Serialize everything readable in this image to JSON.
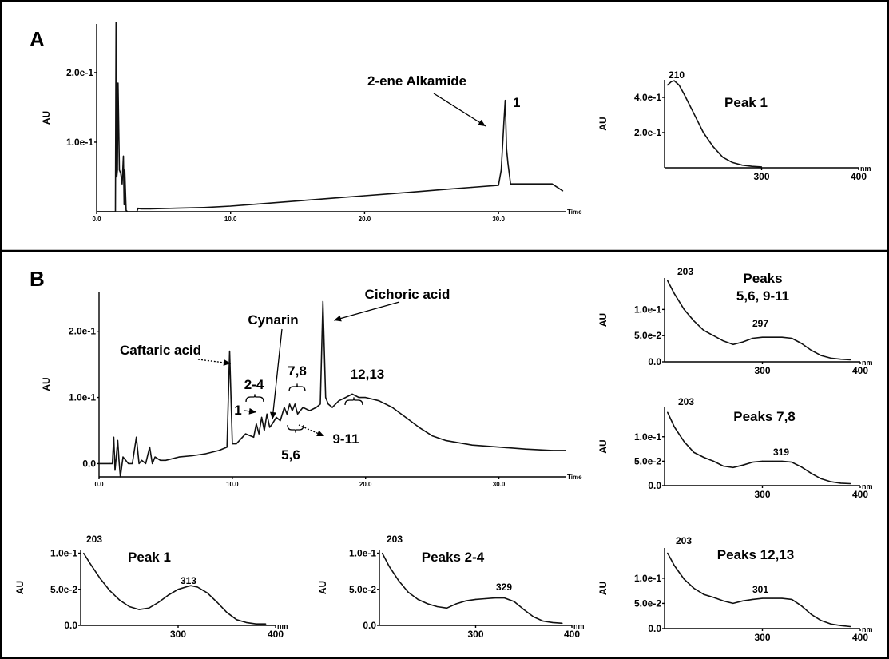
{
  "figure": {
    "panel_a_letter": "A",
    "panel_b_letter": "B"
  },
  "chart_data": [
    {
      "id": "A-chrom",
      "type": "line",
      "xlabel": "Time",
      "ylabel": "AU",
      "xlim": [
        0,
        35
      ],
      "ylim": [
        0,
        0.27
      ],
      "xticks": [
        "0.0",
        "10.0",
        "20.0",
        "30.0"
      ],
      "yticks": [
        "1.0e-1",
        "2.0e-1"
      ],
      "annotations": [
        {
          "text": "2-ene Alkamide",
          "x": 30.5
        },
        {
          "text": "1",
          "x": 30.6
        }
      ],
      "x": [
        0,
        1.2,
        1.4,
        1.45,
        1.5,
        1.55,
        1.6,
        1.7,
        1.8,
        1.9,
        2.0,
        2.05,
        2.1,
        2.2,
        2.3,
        3.0,
        3.1,
        3.3,
        4.0,
        6,
        8,
        10,
        12,
        14,
        16,
        18,
        20,
        22,
        24,
        26,
        28,
        30,
        30.2,
        30.4,
        30.5,
        30.6,
        30.7,
        30.9,
        31.2,
        33,
        34,
        34.8
      ],
      "y": [
        0,
        0,
        0,
        0.272,
        0.05,
        0.06,
        0.185,
        0.06,
        0.055,
        0.04,
        0.08,
        0.01,
        0.06,
        0.002,
        0,
        0,
        0.005,
        0.004,
        0.004,
        0.005,
        0.006,
        0.008,
        0.011,
        0.014,
        0.017,
        0.02,
        0.023,
        0.026,
        0.029,
        0.032,
        0.035,
        0.038,
        0.06,
        0.13,
        0.16,
        0.09,
        0.07,
        0.04,
        0.04,
        0.04,
        0.04,
        0.03
      ]
    },
    {
      "id": "A-spec",
      "type": "line",
      "title": "Peak 1",
      "ylabel": "AU",
      "xlabel": "nm",
      "xlim": [
        200,
        400
      ],
      "ylim": [
        0,
        0.5
      ],
      "xticks": [
        "300",
        "400"
      ],
      "yticks": [
        "2.0e-1",
        "4.0e-1"
      ],
      "peak_label": "210",
      "x": [
        203,
        207,
        210,
        215,
        220,
        230,
        240,
        250,
        260,
        270,
        280,
        290,
        300
      ],
      "y": [
        0.47,
        0.49,
        0.495,
        0.47,
        0.42,
        0.31,
        0.2,
        0.12,
        0.06,
        0.03,
        0.015,
        0.008,
        0.005
      ]
    },
    {
      "id": "B-chrom",
      "type": "line",
      "xlabel": "Time",
      "ylabel": "AU",
      "xlim": [
        0,
        35
      ],
      "ylim": [
        -0.02,
        0.26
      ],
      "xticks": [
        "0.0",
        "10.0",
        "20.0",
        "30.0"
      ],
      "yticks": [
        "0.0",
        "1.0e-1",
        "2.0e-1"
      ],
      "annotations": [
        {
          "text": "Caftaric acid",
          "x": 9.8
        },
        {
          "text": "Cynarin",
          "x": 13.3
        },
        {
          "text": "Cichoric acid",
          "x": 16.7
        },
        {
          "text": "2-4",
          "x": 12.2
        },
        {
          "text": "7,8",
          "x": 14.5
        },
        {
          "text": "12,13",
          "x": 19.0
        },
        {
          "text": "1",
          "x": 11.6
        },
        {
          "text": "5,6",
          "x": 13.9
        },
        {
          "text": "9-11",
          "x": 15.3
        }
      ],
      "x": [
        0,
        0.8,
        1.0,
        1.1,
        1.2,
        1.4,
        1.5,
        1.6,
        1.8,
        2.0,
        2.2,
        2.5,
        2.8,
        3.0,
        3.2,
        3.5,
        3.8,
        4.0,
        4.2,
        4.6,
        5,
        6,
        7,
        8,
        9,
        9.6,
        9.8,
        10.0,
        10.3,
        11.0,
        11.6,
        11.8,
        12.0,
        12.2,
        12.4,
        12.6,
        12.8,
        13.0,
        13.3,
        13.6,
        13.9,
        14.1,
        14.3,
        14.5,
        14.7,
        14.9,
        15.3,
        15.8,
        16.3,
        16.6,
        16.8,
        17.0,
        17.2,
        17.5,
        18,
        18.5,
        19,
        19.5,
        20,
        21,
        22,
        23,
        24,
        25,
        26,
        28,
        30,
        32,
        34,
        35
      ],
      "y": [
        0,
        0,
        0,
        0.04,
        -0.01,
        0.035,
        0.005,
        -0.02,
        0.01,
        0.005,
        0.0,
        0.0,
        0.04,
        0.0,
        0.005,
        0.0,
        0.025,
        0.0,
        0.01,
        0.005,
        0.005,
        0.01,
        0.012,
        0.015,
        0.02,
        0.025,
        0.17,
        0.03,
        0.03,
        0.045,
        0.04,
        0.06,
        0.045,
        0.07,
        0.05,
        0.075,
        0.055,
        0.06,
        0.07,
        0.065,
        0.085,
        0.075,
        0.09,
        0.08,
        0.09,
        0.075,
        0.085,
        0.08,
        0.085,
        0.09,
        0.245,
        0.1,
        0.09,
        0.085,
        0.095,
        0.1,
        0.105,
        0.1,
        0.1,
        0.095,
        0.085,
        0.07,
        0.055,
        0.042,
        0.035,
        0.028,
        0.025,
        0.022,
        0.02,
        0.02
      ]
    },
    {
      "id": "B-spec-5-6-9-11",
      "type": "line",
      "title": "Peaks\n5,6, 9-11",
      "ylabel": "AU",
      "xlabel": "nm",
      "xlim": [
        200,
        400
      ],
      "ylim": [
        0,
        0.16
      ],
      "xticks": [
        "300",
        "400"
      ],
      "yticks": [
        "0.0",
        "5.0e-2",
        "1.0e-1"
      ],
      "peak_labels": [
        "203",
        "297"
      ],
      "x": [
        203,
        210,
        220,
        230,
        240,
        250,
        260,
        270,
        280,
        290,
        300,
        310,
        320,
        330,
        340,
        350,
        360,
        370,
        380,
        390
      ],
      "y": [
        0.155,
        0.13,
        0.1,
        0.078,
        0.06,
        0.05,
        0.04,
        0.033,
        0.038,
        0.045,
        0.047,
        0.047,
        0.047,
        0.045,
        0.035,
        0.022,
        0.012,
        0.007,
        0.005,
        0.004
      ]
    },
    {
      "id": "B-spec-7-8",
      "type": "line",
      "title": "Peaks 7,8",
      "ylabel": "AU",
      "xlabel": "nm",
      "xlim": [
        200,
        400
      ],
      "ylim": [
        0,
        0.16
      ],
      "xticks": [
        "300",
        "400"
      ],
      "yticks": [
        "0.0",
        "5.0e-2",
        "1.0e-1"
      ],
      "peak_labels": [
        "203",
        "319"
      ],
      "x": [
        203,
        210,
        220,
        230,
        240,
        250,
        260,
        270,
        280,
        290,
        300,
        310,
        320,
        330,
        340,
        350,
        360,
        370,
        380,
        390
      ],
      "y": [
        0.15,
        0.12,
        0.09,
        0.068,
        0.058,
        0.05,
        0.04,
        0.037,
        0.042,
        0.048,
        0.05,
        0.05,
        0.05,
        0.048,
        0.038,
        0.025,
        0.014,
        0.008,
        0.005,
        0.004
      ]
    },
    {
      "id": "B-spec-peak1",
      "type": "line",
      "title": "Peak 1",
      "ylabel": "AU",
      "xlabel": "nm",
      "xlim": [
        200,
        400
      ],
      "ylim": [
        0,
        0.105
      ],
      "xticks": [
        "300",
        "400"
      ],
      "yticks": [
        "0.0",
        "5.0e-2",
        "1.0e-1"
      ],
      "peak_labels": [
        "203",
        "313"
      ],
      "x": [
        203,
        210,
        220,
        230,
        240,
        250,
        260,
        270,
        280,
        290,
        300,
        310,
        313,
        320,
        330,
        340,
        350,
        360,
        370,
        380,
        390
      ],
      "y": [
        0.1,
        0.085,
        0.065,
        0.048,
        0.035,
        0.026,
        0.022,
        0.024,
        0.032,
        0.042,
        0.05,
        0.054,
        0.055,
        0.053,
        0.045,
        0.032,
        0.018,
        0.008,
        0.004,
        0.002,
        0.002
      ]
    },
    {
      "id": "B-spec-2-4",
      "type": "line",
      "title": "Peaks 2-4",
      "ylabel": "AU",
      "xlabel": "nm",
      "xlim": [
        200,
        400
      ],
      "ylim": [
        0,
        0.105
      ],
      "xticks": [
        "300",
        "400"
      ],
      "yticks": [
        "0.0",
        "5.0e-2",
        "1.0e-1"
      ],
      "peak_labels": [
        "203",
        "329"
      ],
      "x": [
        203,
        210,
        220,
        230,
        240,
        250,
        260,
        270,
        280,
        290,
        300,
        310,
        320,
        330,
        340,
        350,
        360,
        370,
        380,
        390
      ],
      "y": [
        0.1,
        0.082,
        0.062,
        0.046,
        0.036,
        0.03,
        0.026,
        0.024,
        0.03,
        0.034,
        0.036,
        0.037,
        0.038,
        0.038,
        0.033,
        0.022,
        0.012,
        0.006,
        0.004,
        0.003
      ]
    },
    {
      "id": "B-spec-12-13",
      "type": "line",
      "title": "Peaks 12,13",
      "ylabel": "AU",
      "xlabel": "nm",
      "xlim": [
        200,
        400
      ],
      "ylim": [
        0,
        0.16
      ],
      "xticks": [
        "300",
        "400"
      ],
      "yticks": [
        "0.0",
        "5.0e-2",
        "1.0e-1"
      ],
      "peak_labels": [
        "203",
        "301"
      ],
      "x": [
        203,
        210,
        220,
        230,
        240,
        250,
        260,
        270,
        280,
        290,
        300,
        310,
        320,
        330,
        340,
        350,
        360,
        370,
        380,
        390
      ],
      "y": [
        0.15,
        0.125,
        0.098,
        0.08,
        0.068,
        0.062,
        0.055,
        0.05,
        0.055,
        0.058,
        0.06,
        0.06,
        0.06,
        0.058,
        0.045,
        0.028,
        0.016,
        0.009,
        0.006,
        0.004
      ]
    }
  ]
}
